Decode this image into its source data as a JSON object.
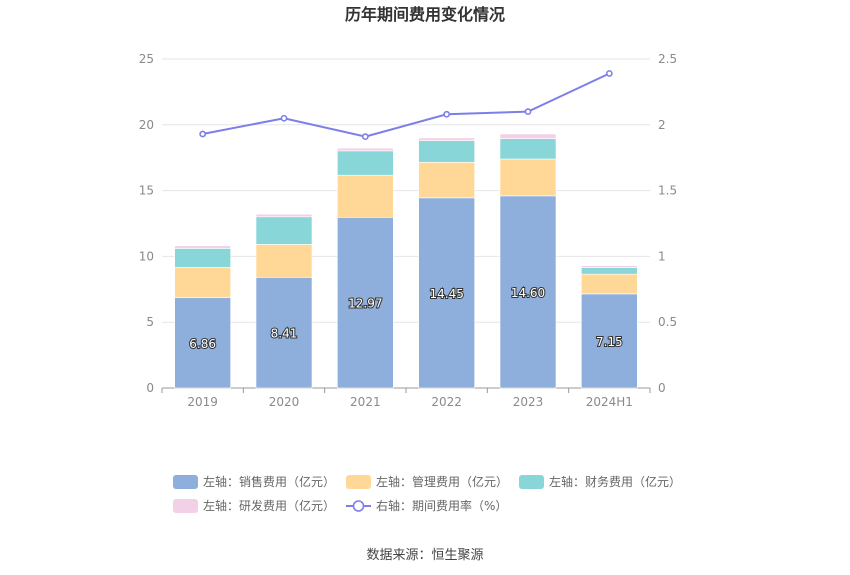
{
  "chart_data": {
    "type": "bar",
    "stacked": true,
    "title": "历年期间费用变化情况",
    "source": "数据来源：恒生聚源",
    "categories": [
      "2019",
      "2020",
      "2021",
      "2022",
      "2023",
      "2024H1"
    ],
    "y_left": {
      "ylim": [
        0,
        25
      ],
      "ticks": [
        "0",
        "5",
        "10",
        "15",
        "20",
        "25"
      ]
    },
    "y_right": {
      "ylim": [
        0,
        2.5
      ],
      "ticks": [
        "0",
        "0.5",
        "1",
        "1.5",
        "2",
        "2.5"
      ]
    },
    "grid": true,
    "legend_position": "bottom",
    "series": [
      {
        "name": "左轴：销售费用（亿元）",
        "type": "bar",
        "axis": "left",
        "color": "#8eaedc",
        "values": [
          6.86,
          8.41,
          12.97,
          14.45,
          14.6,
          7.15
        ],
        "labels": [
          "6.86",
          "8.41",
          "12.97",
          "14.45",
          "14.60",
          "7.15"
        ]
      },
      {
        "name": "左轴：管理费用（亿元）",
        "type": "bar",
        "axis": "left",
        "color": "#ffd898",
        "values": [
          2.3,
          2.5,
          3.2,
          2.7,
          2.8,
          1.5
        ]
      },
      {
        "name": "左轴：财务费用（亿元）",
        "type": "bar",
        "axis": "left",
        "color": "#88d6d8",
        "values": [
          1.45,
          2.1,
          1.85,
          1.65,
          1.55,
          0.5
        ]
      },
      {
        "name": "左轴：研发费用（亿元）",
        "type": "bar",
        "axis": "left",
        "color": "#f2d0e6",
        "values": [
          0.2,
          0.2,
          0.2,
          0.2,
          0.35,
          0.15
        ]
      },
      {
        "name": "右轴：期间费用率（%）",
        "type": "line",
        "axis": "right",
        "color": "#7b7fe8",
        "values": [
          1.93,
          2.05,
          1.91,
          2.08,
          2.1,
          2.39
        ]
      }
    ]
  }
}
